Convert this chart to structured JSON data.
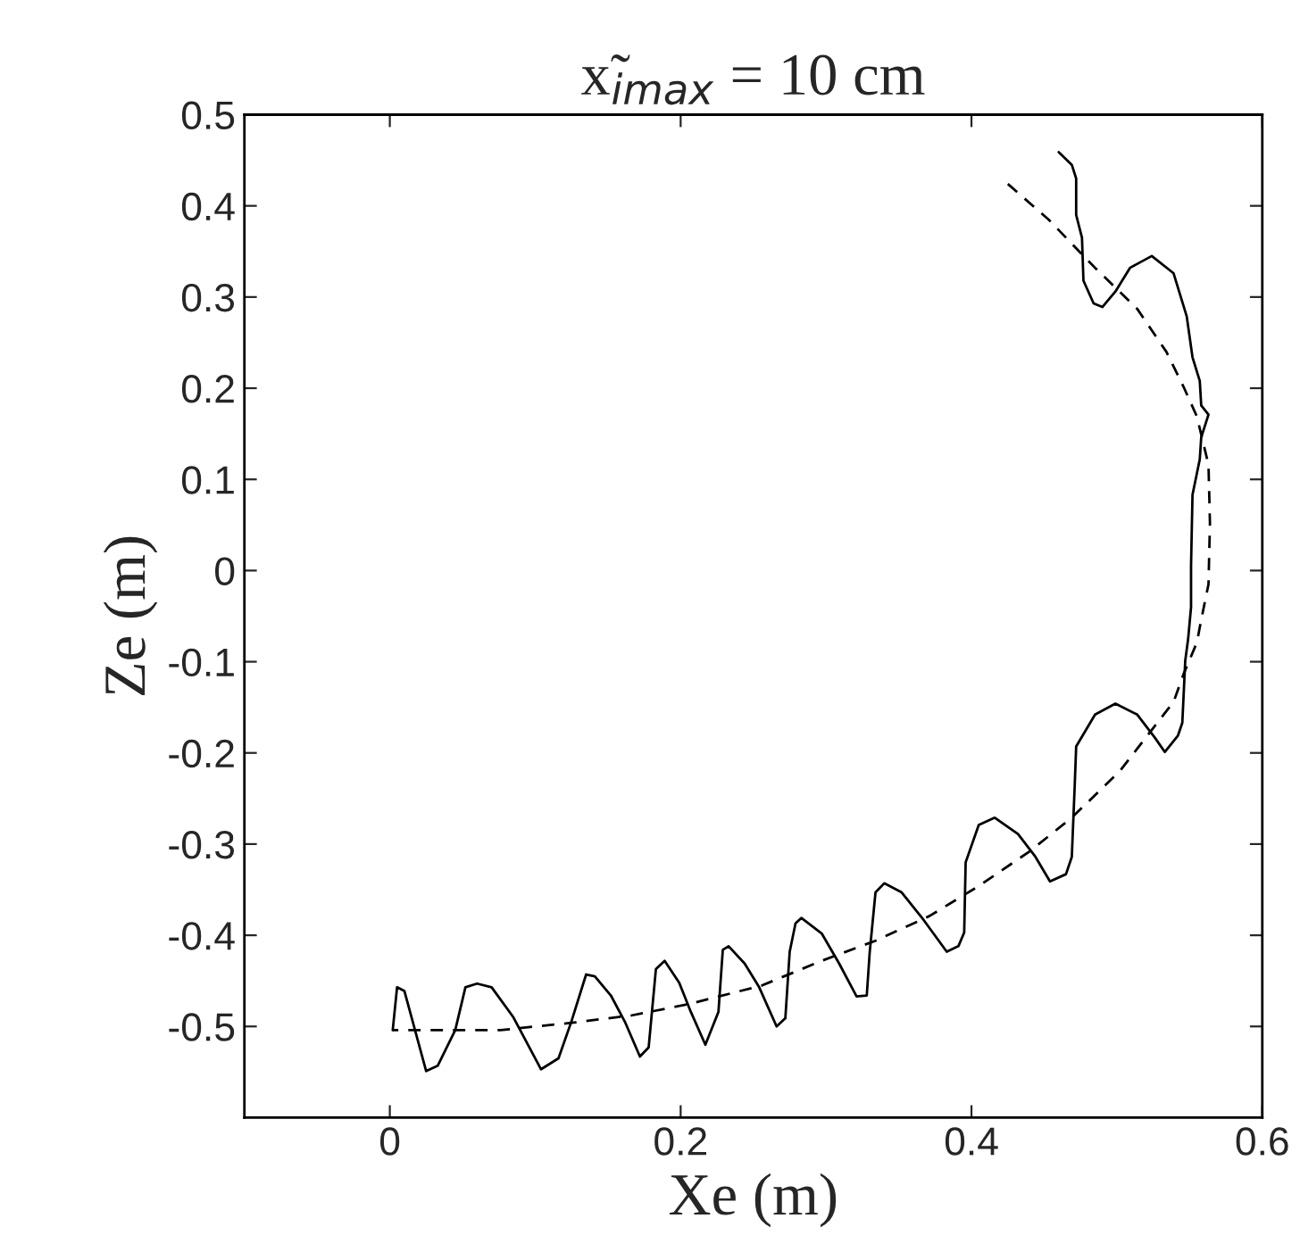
{
  "chart_data": {
    "type": "line",
    "title": "x̃$_{imax}$ = 10 cm",
    "xlabel": "Xe (m)",
    "ylabel": "Ze (m)",
    "xlim": [
      -0.1,
      0.6
    ],
    "xticks": [
      0,
      0.2,
      0.4,
      0.6
    ],
    "ylim": [
      -0.6,
      0.5
    ],
    "yticks": [
      -0.5,
      -0.4,
      -0.3,
      -0.2,
      -0.1,
      0,
      0.1,
      0.2,
      0.3,
      0.4,
      0.5
    ],
    "grid": false,
    "legend": false,
    "series": [
      {
        "color": "#000000",
        "line_style": "solid",
        "x": [
          0.002,
          0.005,
          0.01,
          0.025,
          0.033,
          0.045,
          0.052,
          0.06,
          0.07,
          0.085,
          0.104,
          0.116,
          0.125,
          0.135,
          0.141,
          0.152,
          0.162,
          0.172,
          0.178,
          0.183,
          0.189,
          0.199,
          0.207,
          0.217,
          0.226,
          0.229,
          0.233,
          0.244,
          0.254,
          0.266,
          0.272,
          0.275,
          0.279,
          0.283,
          0.297,
          0.309,
          0.321,
          0.328,
          0.33,
          0.334,
          0.34,
          0.352,
          0.367,
          0.383,
          0.391,
          0.395,
          0.396,
          0.405,
          0.416,
          0.432,
          0.444,
          0.454,
          0.465,
          0.469,
          0.471,
          0.472,
          0.485,
          0.499,
          0.514,
          0.526,
          0.533,
          0.542,
          0.545,
          0.547,
          0.549,
          0.551,
          0.551,
          0.552,
          0.557,
          0.558,
          0.563,
          0.558,
          0.557,
          0.552,
          0.548,
          0.539,
          0.524,
          0.509,
          0.499,
          0.49,
          0.484,
          0.477,
          0.476,
          0.472,
          0.472,
          0.469,
          0.46
        ],
        "values": [
          -0.504,
          -0.457,
          -0.461,
          -0.549,
          -0.543,
          -0.504,
          -0.457,
          -0.453,
          -0.457,
          -0.49,
          -0.547,
          -0.535,
          -0.494,
          -0.443,
          -0.445,
          -0.466,
          -0.496,
          -0.533,
          -0.523,
          -0.437,
          -0.428,
          -0.452,
          -0.484,
          -0.52,
          -0.484,
          -0.416,
          -0.412,
          -0.431,
          -0.457,
          -0.5,
          -0.491,
          -0.418,
          -0.387,
          -0.381,
          -0.398,
          -0.431,
          -0.467,
          -0.466,
          -0.419,
          -0.353,
          -0.343,
          -0.353,
          -0.383,
          -0.418,
          -0.412,
          -0.397,
          -0.32,
          -0.279,
          -0.271,
          -0.289,
          -0.314,
          -0.341,
          -0.333,
          -0.314,
          -0.236,
          -0.193,
          -0.158,
          -0.146,
          -0.158,
          -0.183,
          -0.199,
          -0.181,
          -0.167,
          -0.099,
          -0.075,
          -0.04,
          0.005,
          0.083,
          0.122,
          0.146,
          0.171,
          0.181,
          0.208,
          0.234,
          0.279,
          0.326,
          0.345,
          0.332,
          0.306,
          0.289,
          0.293,
          0.318,
          0.365,
          0.39,
          0.43,
          0.445,
          0.459
        ]
      },
      {
        "color": "#000000",
        "line_style": "dashed",
        "x": [
          0.425,
          0.453,
          0.485,
          0.514,
          0.534,
          0.546,
          0.555,
          0.563,
          0.564,
          0.563,
          0.558,
          0.555,
          0.546,
          0.539,
          0.521,
          0.502,
          0.469,
          0.44,
          0.404,
          0.371,
          0.334,
          0.297,
          0.256,
          0.207,
          0.166,
          0.125,
          0.076,
          0.002
        ],
        "values": [
          0.424,
          0.385,
          0.332,
          0.287,
          0.24,
          0.201,
          0.169,
          0.116,
          0.052,
          -0.015,
          -0.054,
          -0.079,
          -0.113,
          -0.144,
          -0.181,
          -0.22,
          -0.271,
          -0.308,
          -0.347,
          -0.379,
          -0.406,
          -0.428,
          -0.455,
          -0.475,
          -0.488,
          -0.496,
          -0.504,
          -0.504
        ]
      }
    ]
  }
}
